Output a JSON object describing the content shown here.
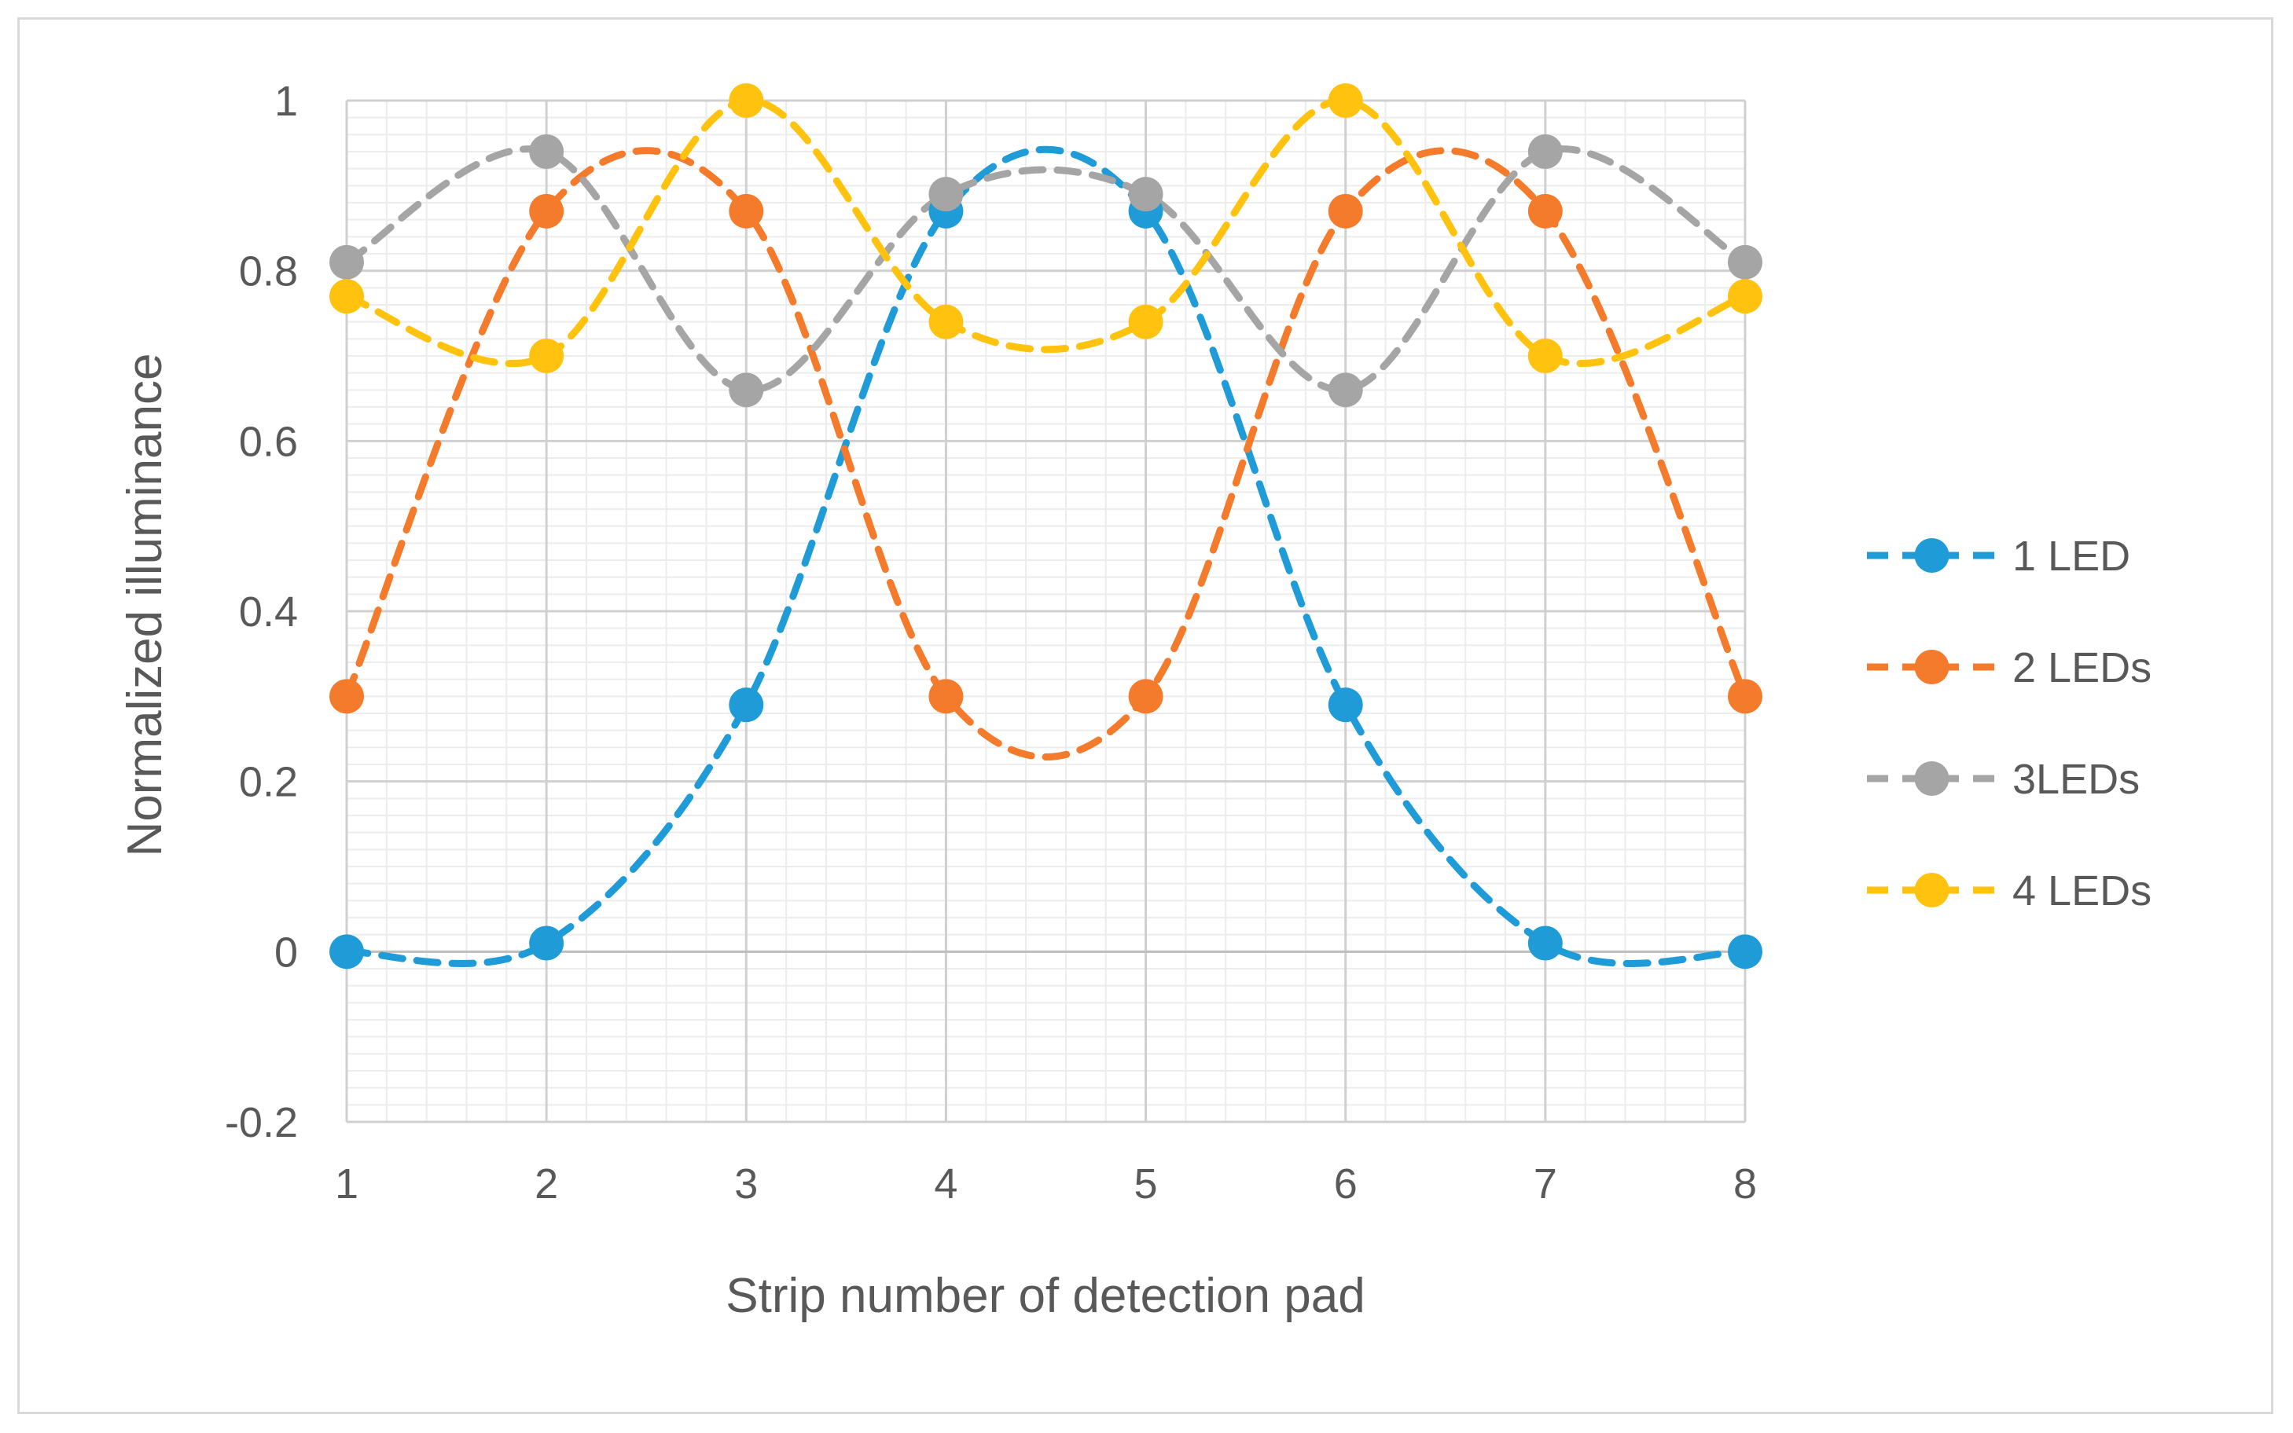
{
  "chart_data": {
    "type": "line",
    "title": "",
    "xlabel": "Strip number of detection pad",
    "ylabel": "Normalized illuminance",
    "x": [
      1,
      2,
      3,
      4,
      5,
      6,
      7,
      8
    ],
    "xlim": [
      1,
      8
    ],
    "ylim": [
      -0.2,
      1
    ],
    "yticks": [
      -0.2,
      0,
      0.2,
      0.4,
      0.6,
      0.8,
      1
    ],
    "ytick_labels": [
      "-0.2",
      "0",
      "0.2",
      "0.4",
      "0.6",
      "0.8",
      "1"
    ],
    "xtick_labels": [
      "1",
      "2",
      "3",
      "4",
      "5",
      "6",
      "7",
      "8"
    ],
    "grid": true,
    "legend_position": "right",
    "series": [
      {
        "name": "1 LED",
        "color": "#1f9bd8",
        "values": [
          0.0,
          0.01,
          0.29,
          0.87,
          0.87,
          0.29,
          0.01,
          0.0
        ]
      },
      {
        "name": "2 LEDs",
        "color": "#f47b2c",
        "values": [
          0.3,
          0.87,
          0.87,
          0.3,
          0.3,
          0.87,
          0.87,
          0.3
        ]
      },
      {
        "name": "3LEDs",
        "color": "#a5a5a5",
        "values": [
          0.81,
          0.94,
          0.66,
          0.89,
          0.89,
          0.66,
          0.94,
          0.81
        ]
      },
      {
        "name": "4 LEDs",
        "color": "#ffc20e",
        "values": [
          0.77,
          0.7,
          1.0,
          0.74,
          0.74,
          1.0,
          0.7,
          0.77
        ]
      }
    ]
  }
}
